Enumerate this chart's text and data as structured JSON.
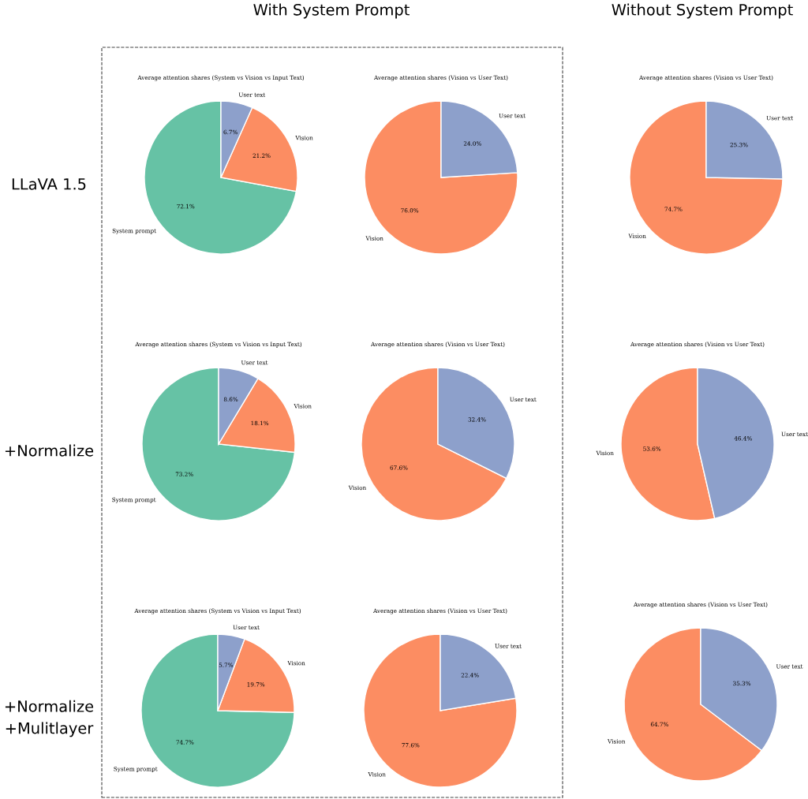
{
  "chart_data": [
    {
      "type": "pie",
      "title": "Average attention shares (System vs Vision vs Input Text)",
      "categories": [
        "System prompt",
        "Vision",
        "User text"
      ],
      "values": [
        72.1,
        21.2,
        6.7
      ],
      "value_labels": [
        "72.1%",
        "21.2%",
        "6.7%"
      ],
      "colors": [
        "#66c2a5",
        "#fc8d62",
        "#8da0cb"
      ],
      "annotations": [
        "With System Prompt",
        "LLaVA 1.5"
      ]
    },
    {
      "type": "pie",
      "title": "Average attention shares (Vision vs User Text)",
      "categories": [
        "Vision",
        "User text"
      ],
      "values": [
        76.0,
        24.0
      ],
      "value_labels": [
        "76.0%",
        "24.0%"
      ],
      "colors": [
        "#fc8d62",
        "#8da0cb"
      ]
    },
    {
      "type": "pie",
      "title": "Average attention shares (Vision vs User Text)",
      "categories": [
        "Vision",
        "User text"
      ],
      "values": [
        74.7,
        25.3
      ],
      "value_labels": [
        "74.7%",
        "25.3%"
      ],
      "colors": [
        "#fc8d62",
        "#8da0cb"
      ],
      "annotations": [
        "Without System Prompt"
      ]
    },
    {
      "type": "pie",
      "title": "Average attention shares (System vs Vision vs Input Text)",
      "categories": [
        "System prompt",
        "Vision",
        "User text"
      ],
      "values": [
        73.2,
        18.1,
        8.6
      ],
      "value_labels": [
        "73.2%",
        "18.1%",
        "8.6%"
      ],
      "colors": [
        "#66c2a5",
        "#fc8d62",
        "#8da0cb"
      ],
      "annotations": [
        "+Normalize"
      ]
    },
    {
      "type": "pie",
      "title": "Average attention shares (Vision vs User Text)",
      "categories": [
        "Vision",
        "User text"
      ],
      "values": [
        67.6,
        32.4
      ],
      "value_labels": [
        "67.6%",
        "32.4%"
      ],
      "colors": [
        "#fc8d62",
        "#8da0cb"
      ]
    },
    {
      "type": "pie",
      "title": "Average attention shares (Vision vs User Text)",
      "categories": [
        "Vision",
        "User text"
      ],
      "values": [
        53.6,
        46.4
      ],
      "value_labels": [
        "53.6%",
        "46.4%"
      ],
      "colors": [
        "#fc8d62",
        "#8da0cb"
      ]
    },
    {
      "type": "pie",
      "title": "Average attention shares (System vs Vision vs Input Text)",
      "categories": [
        "System prompt",
        "Vision",
        "User text"
      ],
      "values": [
        74.7,
        19.7,
        5.7
      ],
      "value_labels": [
        "74.7%",
        "19.7%",
        "5.7%"
      ],
      "colors": [
        "#66c2a5",
        "#fc8d62",
        "#8da0cb"
      ],
      "annotations": [
        "+Normalize\n+Mulitlayer"
      ]
    },
    {
      "type": "pie",
      "title": "Average attention shares (Vision vs User Text)",
      "categories": [
        "Vision",
        "User text"
      ],
      "values": [
        77.6,
        22.4
      ],
      "value_labels": [
        "77.6%",
        "22.4%"
      ],
      "colors": [
        "#fc8d62",
        "#8da0cb"
      ]
    },
    {
      "type": "pie",
      "title": "Average attention shares (Vision vs User Text)",
      "categories": [
        "Vision",
        "User text"
      ],
      "values": [
        64.7,
        35.3
      ],
      "value_labels": [
        "64.7%",
        "35.3%"
      ],
      "colors": [
        "#fc8d62",
        "#8da0cb"
      ]
    }
  ]
}
